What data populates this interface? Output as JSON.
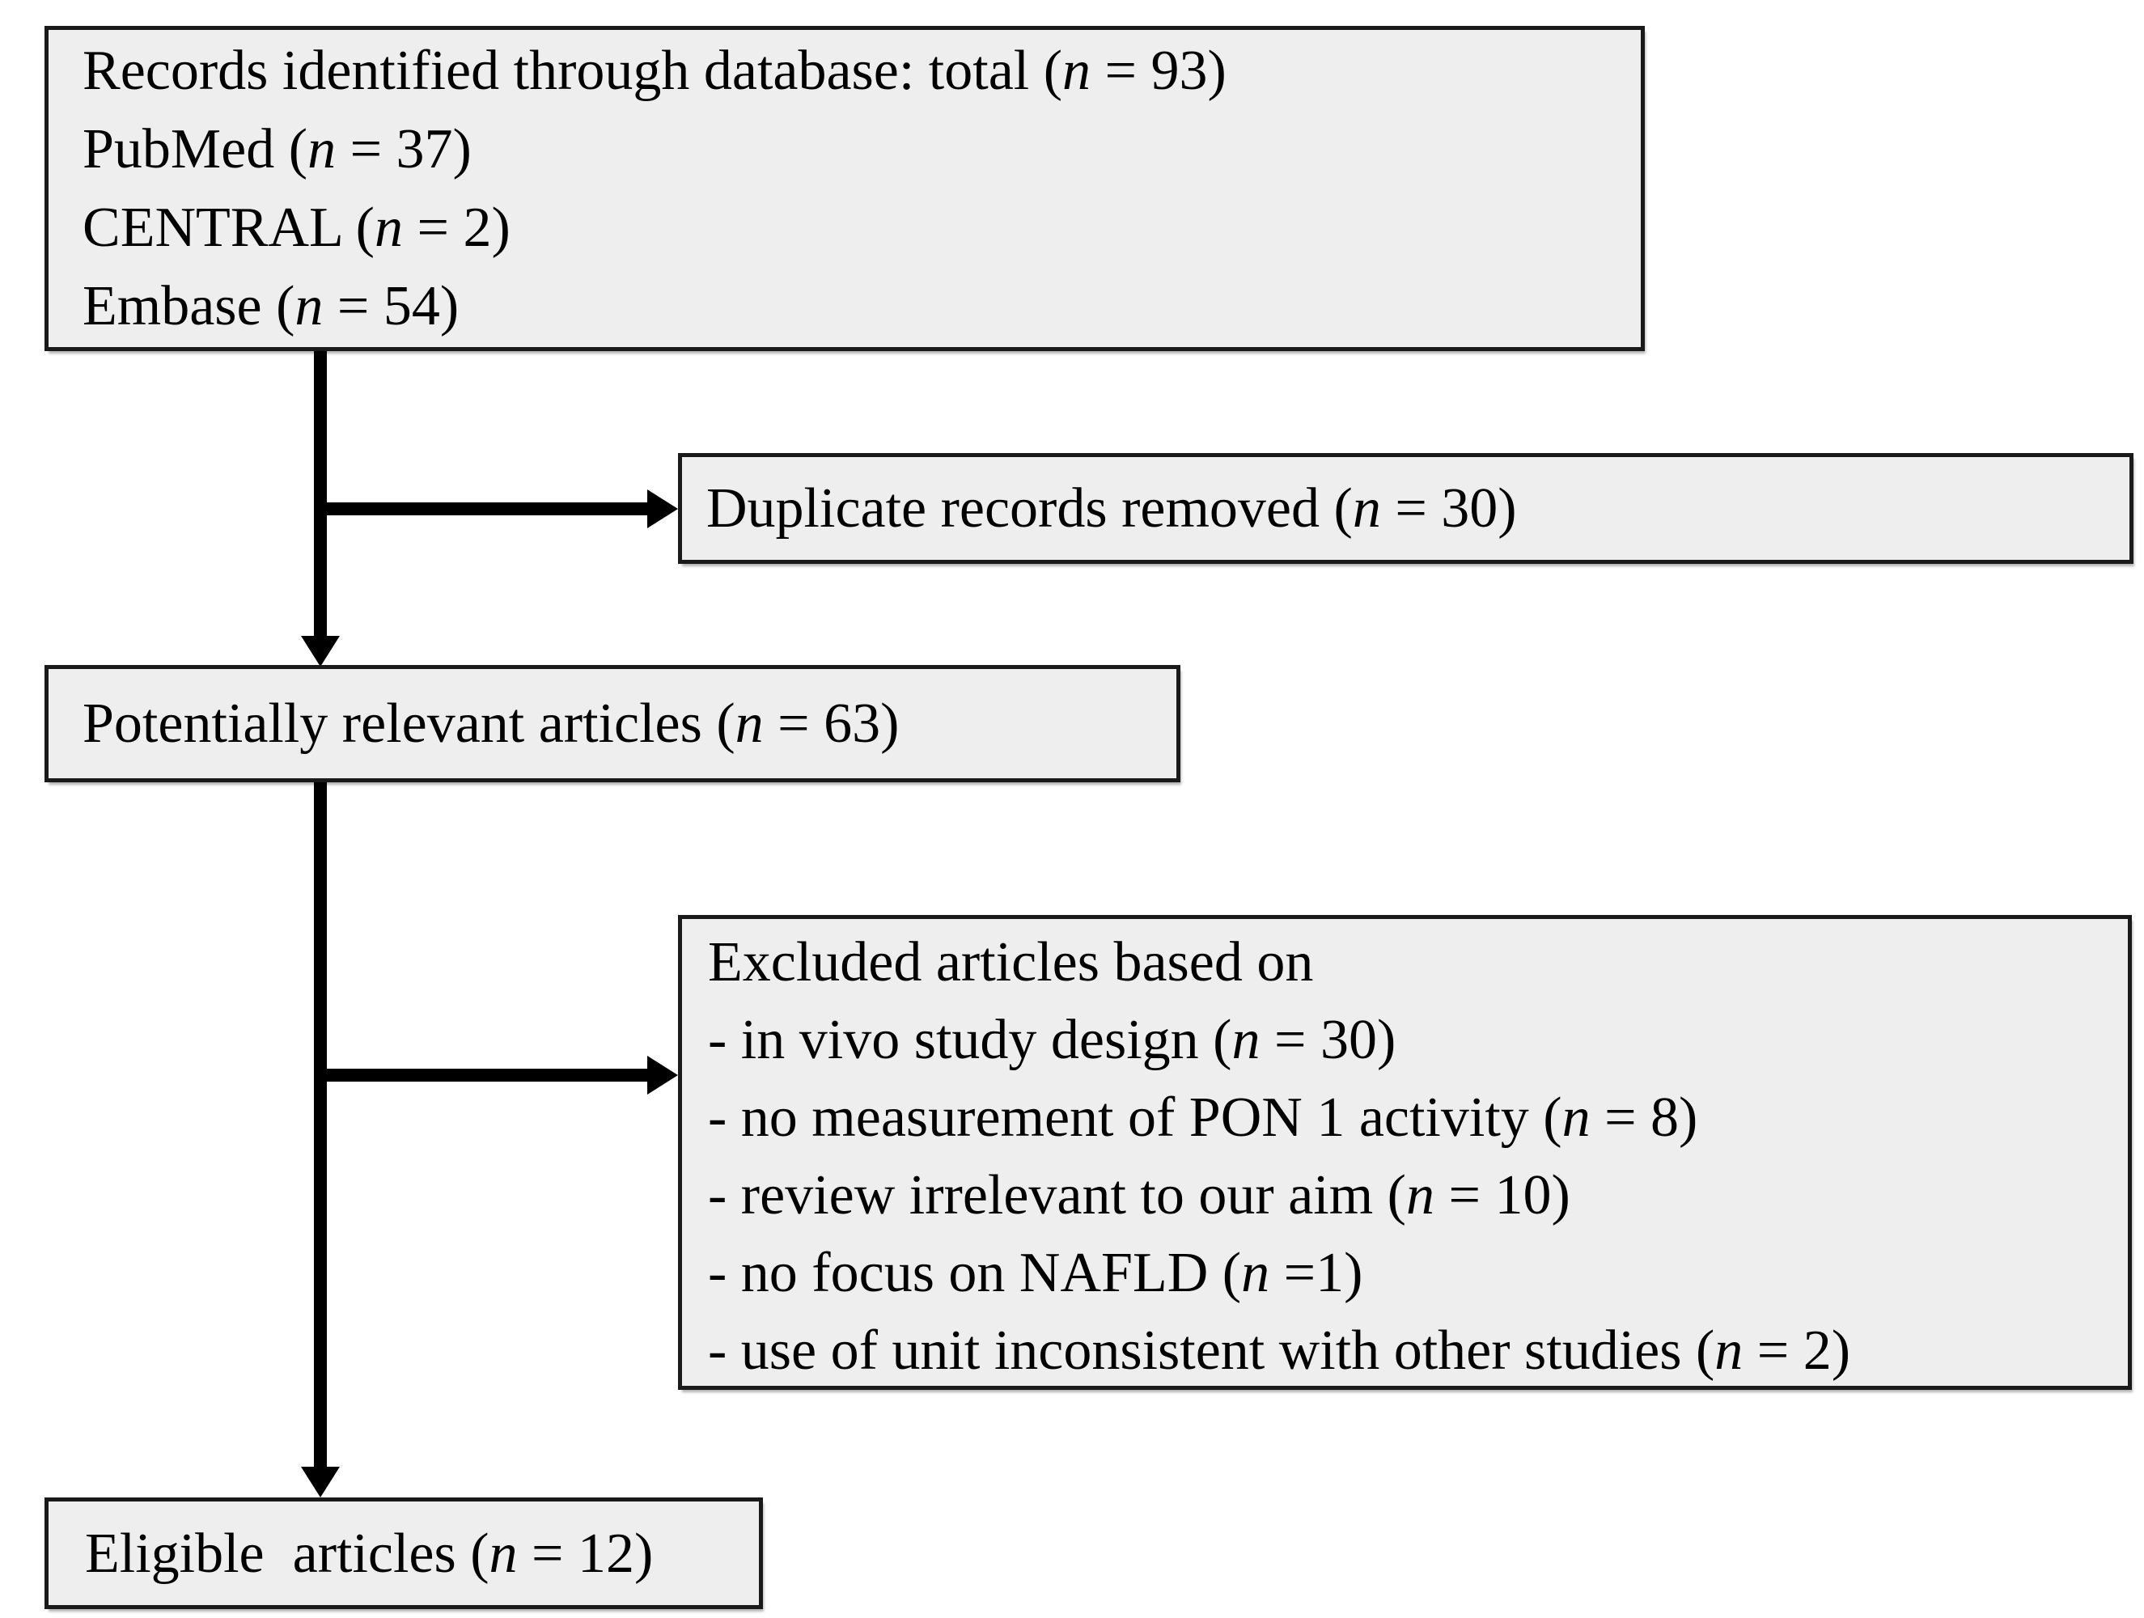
{
  "flow": {
    "identification": {
      "lines": [
        "Records identified through database: total (n = 93)",
        "PubMed (n = 37)",
        "CENTRAL (n = 2)",
        "Embase (n = 54)"
      ]
    },
    "duplicates_removed": {
      "label": "Duplicate records removed (n = 30)"
    },
    "potentially_relevant": {
      "label": "Potentially relevant articles (n = 63)"
    },
    "excluded": {
      "heading": "Excluded articles based on",
      "reasons": [
        "- in vivo study design (n = 30)",
        "- no measurement of PON 1 activity (n = 8)",
        "- review irrelevant to our aim (n = 10)",
        "- no focus on NAFLD (n =1)",
        "- use of unit inconsistent with other studies (n = 2)"
      ]
    },
    "eligible": {
      "label": "Eligible  articles (n = 12)"
    }
  },
  "colors": {
    "box_fill": "#eeeeee",
    "box_border": "#1a1a1a",
    "arrow": "#000000",
    "page_background": "#ffffff",
    "text": "#000000"
  }
}
